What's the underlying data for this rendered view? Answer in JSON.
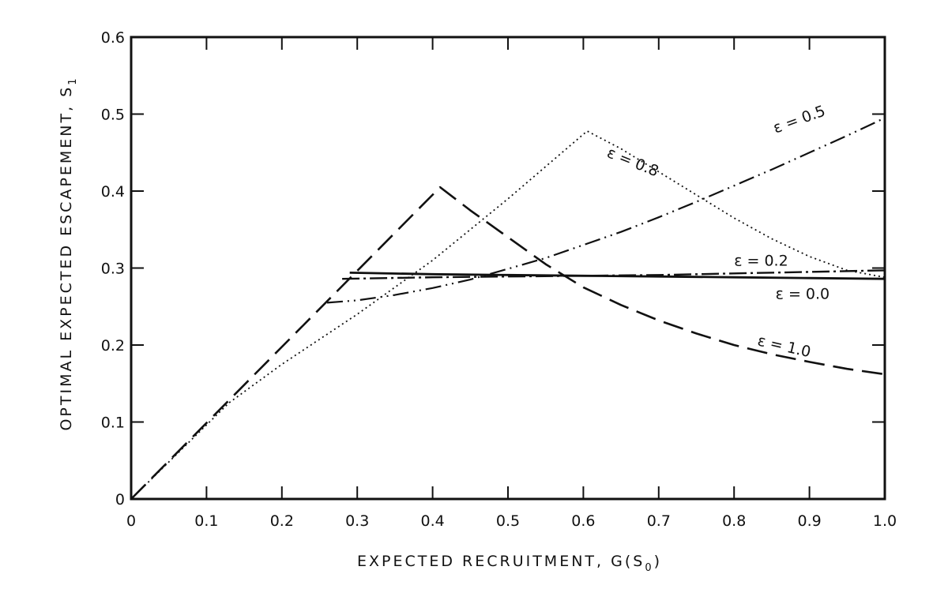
{
  "chart_data": {
    "type": "line",
    "xlabel": "EXPECTED RECRUITMENT, G(S",
    "xlabel_sub": "0",
    "xlabel_end": ")",
    "ylabel": "OPTIMAL EXPECTED ESCAPEMENT, S",
    "ylabel_sub": "1",
    "xlim": [
      0,
      1.0
    ],
    "ylim": [
      0,
      0.6
    ],
    "x_ticks": [
      "0",
      "0.1",
      "0.2",
      "0.3",
      "0.4",
      "0.5",
      "0.6",
      "0.7",
      "0.8",
      "0.9",
      "1.0"
    ],
    "y_ticks": [
      "0",
      "0.1",
      "0.2",
      "0.3",
      "0.4",
      "0.5",
      "0.6"
    ],
    "grid": false,
    "series": [
      {
        "name": "ε = 1.0",
        "style": "long-dash",
        "x": [
          0,
          0.41,
          0.45,
          0.5,
          0.55,
          0.6,
          0.65,
          0.7,
          0.75,
          0.8,
          0.85,
          0.9,
          0.95,
          1.0
        ],
        "y": [
          0,
          0.405,
          0.375,
          0.34,
          0.305,
          0.275,
          0.252,
          0.232,
          0.215,
          0.2,
          0.188,
          0.178,
          0.169,
          0.162
        ]
      },
      {
        "name": "ε = 0.8",
        "style": "dotted",
        "x": [
          0,
          0.13,
          0.2,
          0.3,
          0.4,
          0.5,
          0.605,
          0.65,
          0.7,
          0.75,
          0.8,
          0.85,
          0.9,
          0.95,
          1.0
        ],
        "y": [
          0,
          0.125,
          0.175,
          0.24,
          0.31,
          0.39,
          0.478,
          0.455,
          0.425,
          0.395,
          0.365,
          0.338,
          0.315,
          0.297,
          0.288
        ]
      },
      {
        "name": "ε = 0.5",
        "style": "dash-dot-dot",
        "x": [
          0.26,
          0.3,
          0.35,
          0.4,
          0.45,
          0.5,
          0.55,
          0.6,
          0.65,
          0.7,
          0.75,
          0.8,
          0.85,
          0.9,
          0.95,
          1.0
        ],
        "y": [
          0.255,
          0.258,
          0.265,
          0.274,
          0.285,
          0.299,
          0.313,
          0.33,
          0.347,
          0.366,
          0.386,
          0.407,
          0.428,
          0.45,
          0.472,
          0.495
        ]
      },
      {
        "name": "ε = 0.2",
        "style": "dash-dot",
        "x": [
          0.28,
          0.4,
          0.5,
          0.6,
          0.7,
          0.8,
          0.9,
          1.0
        ],
        "y": [
          0.286,
          0.288,
          0.289,
          0.29,
          0.291,
          0.293,
          0.295,
          0.297
        ]
      },
      {
        "name": "ε = 0.0",
        "style": "solid",
        "x": [
          0.29,
          0.4,
          0.5,
          0.6,
          0.7,
          0.8,
          0.9,
          1.0
        ],
        "y": [
          0.294,
          0.292,
          0.291,
          0.29,
          0.289,
          0.288,
          0.287,
          0.286
        ]
      }
    ],
    "labels": [
      {
        "text": "ε = 0.8",
        "x": 0.63,
        "y": 0.445,
        "rotate": 22
      },
      {
        "text": "ε = 0.5",
        "x": 0.855,
        "y": 0.475,
        "rotate": -20
      },
      {
        "text": "ε = 0.2",
        "x": 0.8,
        "y": 0.303,
        "rotate": 0
      },
      {
        "text": "ε = 0.0",
        "x": 0.855,
        "y": 0.26,
        "rotate": 0
      },
      {
        "text": "ε = 1.0",
        "x": 0.83,
        "y": 0.2,
        "rotate": 13
      }
    ]
  }
}
